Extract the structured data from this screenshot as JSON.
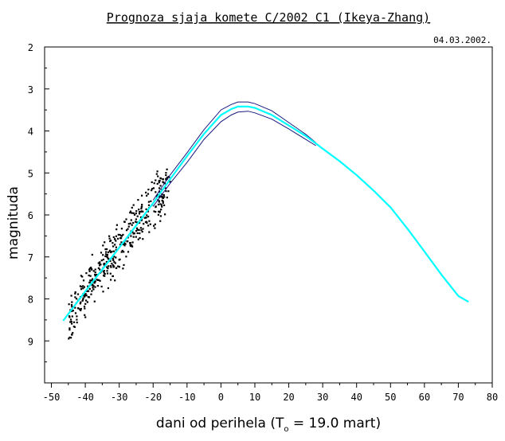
{
  "chart_data": {
    "type": "line",
    "title": "Prognoza sjaja komete C/2002 C1 (Ikeya-Zhang)",
    "date": "04.03.2002.",
    "ylabel": "magnituda",
    "xlabel": {
      "main": "dani od perihela (T",
      "subscript": "o",
      "rest": " = 19.0 mart)"
    },
    "xlim": [
      -52,
      80
    ],
    "ylim": [
      2,
      10
    ],
    "y_inverted": true,
    "x_ticks": [
      -50,
      -40,
      -30,
      -20,
      -10,
      0,
      10,
      20,
      30,
      40,
      50,
      60,
      70,
      80
    ],
    "y_ticks": [
      2,
      3,
      4,
      5,
      6,
      7,
      8,
      9
    ],
    "grid": false,
    "colors": {
      "prediction": "#00ffff",
      "bounds": "#1a1a80",
      "observations": "#000000"
    },
    "series": [
      {
        "role": "prediction",
        "x": [
          -46.5,
          -40,
          -35,
          -30,
          -25,
          -20,
          -15,
          -10,
          -5,
          0,
          3,
          5,
          8,
          10,
          15,
          20,
          25,
          28,
          30,
          35,
          40,
          45,
          50,
          55,
          60,
          65,
          70,
          73
        ],
        "y": [
          8.52,
          7.82,
          7.3,
          6.78,
          6.25,
          5.72,
          5.15,
          4.6,
          4.07,
          3.62,
          3.48,
          3.42,
          3.42,
          3.45,
          3.62,
          3.87,
          4.12,
          4.3,
          4.42,
          4.72,
          5.05,
          5.42,
          5.82,
          6.33,
          6.87,
          7.42,
          7.93,
          8.07
        ]
      },
      {
        "role": "upper-bound",
        "x": [
          -20,
          -15,
          -10,
          -5,
          0,
          3,
          5,
          8,
          10,
          15,
          20,
          25,
          28
        ],
        "y": [
          5.65,
          5.05,
          4.52,
          3.97,
          3.5,
          3.37,
          3.31,
          3.31,
          3.35,
          3.52,
          3.8,
          4.08,
          4.28
        ]
      },
      {
        "role": "lower-bound",
        "x": [
          -20,
          -15,
          -10,
          -5,
          0,
          3,
          5,
          8,
          10,
          15,
          20,
          25,
          28
        ],
        "y": [
          5.8,
          5.25,
          4.75,
          4.2,
          3.78,
          3.62,
          3.55,
          3.53,
          3.57,
          3.72,
          3.95,
          4.2,
          4.35
        ]
      }
    ],
    "observations_seed": {
      "x_range": [
        -45,
        -15
      ],
      "note": "scatter of individual observations following the prediction with ~0.4 mag spread"
    }
  }
}
